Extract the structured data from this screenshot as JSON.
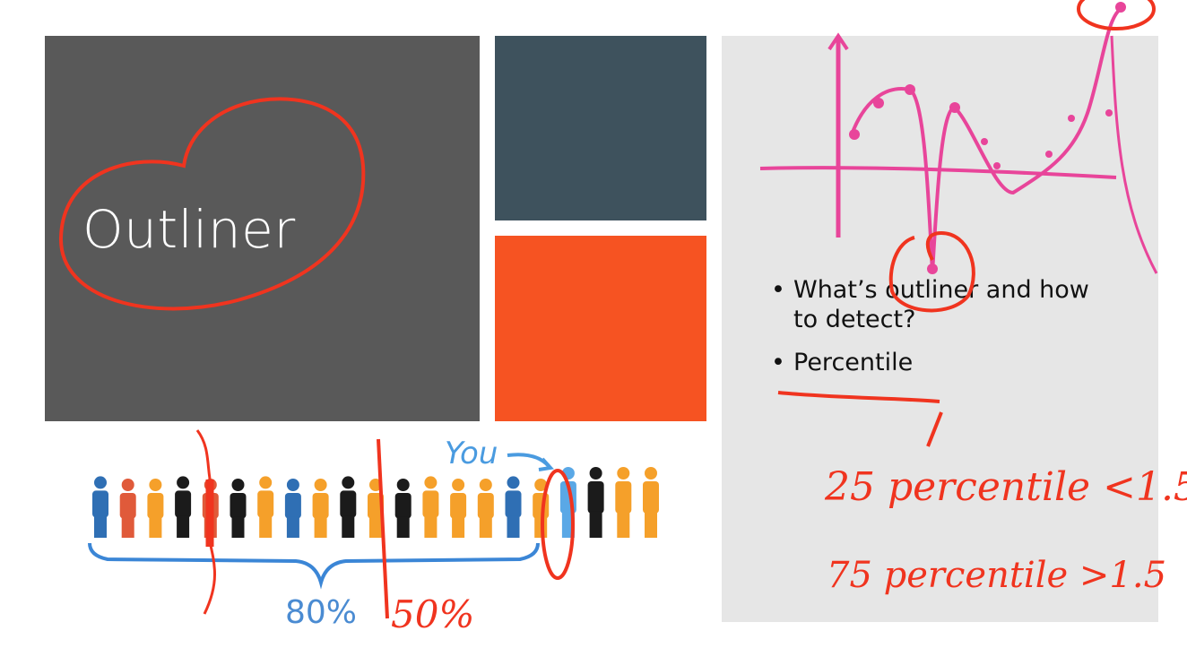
{
  "slide": {
    "title": "Outliner",
    "bullets": [
      "What’s outliner and how to detect?",
      "Percentile"
    ]
  },
  "illustration": {
    "you_label": "You",
    "percent_label": "80%"
  },
  "annotations": {
    "fifty_percent": "50%",
    "note_1": "25 percentile <1.5",
    "note_2": "75 percentile >1.5"
  },
  "colors": {
    "title_tile": "#595959",
    "teal_tile": "#3e525d",
    "orange_tile": "#f65322",
    "content_tile": "#e6e6e6",
    "ink_red": "#f0341f",
    "ink_pink": "#e8459a",
    "people_blue": "#2f6fb4",
    "people_orange": "#f5a02a",
    "people_black": "#1b1b1b",
    "people_red": "#e05a3a",
    "people_light_blue": "#5aa8e6"
  }
}
